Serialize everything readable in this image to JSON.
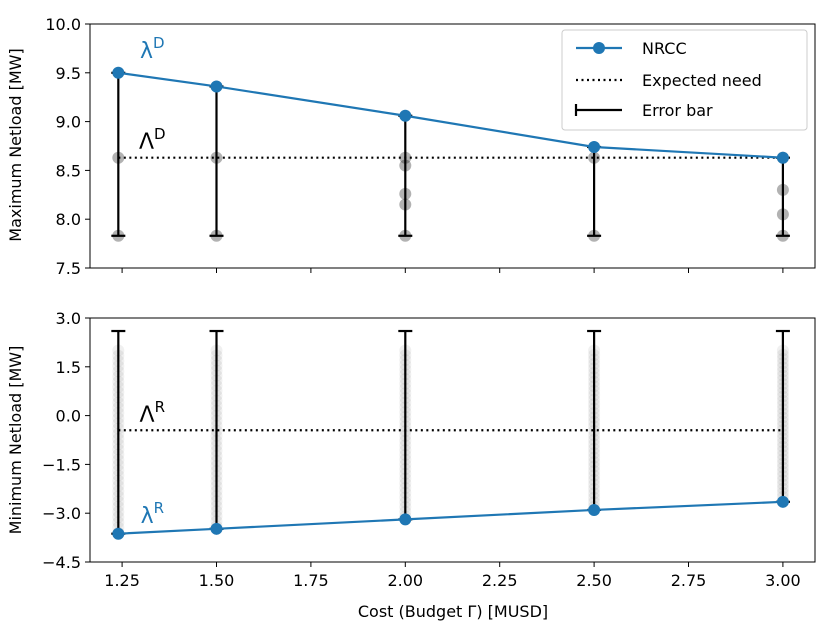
{
  "chart_data": [
    {
      "type": "line",
      "panel": "top",
      "ylabel": "Maximum Netload [MW]",
      "ylim": [
        7.5,
        10.0
      ],
      "yticks": [
        7.5,
        8.0,
        8.5,
        9.0,
        9.5,
        10.0
      ],
      "ytick_labels": [
        "7.5",
        "8.0",
        "8.5",
        "9.0",
        "9.5",
        "10.0"
      ],
      "xlim": [
        1.165,
        3.085
      ],
      "xticks": [
        1.25,
        1.5,
        1.75,
        2.0,
        2.25,
        2.5,
        2.75,
        3.0
      ],
      "x": [
        1.24,
        1.5,
        2.0,
        2.5,
        3.0
      ],
      "series": [
        {
          "name": "NRCC",
          "kind": "line-marker",
          "color": "#1f77b4",
          "values": [
            9.5,
            9.36,
            9.06,
            8.74,
            8.63
          ]
        },
        {
          "name": "Expected need",
          "kind": "dotted",
          "color": "#000000",
          "values": [
            8.63,
            8.63,
            8.63,
            8.63,
            8.63
          ]
        }
      ],
      "error_bars": {
        "name": "Error bar",
        "lower": [
          7.83,
          7.83,
          7.83,
          7.83,
          7.83
        ],
        "upper": [
          9.5,
          9.36,
          9.06,
          8.74,
          8.63
        ]
      },
      "samples": [
        {
          "x": 1.24,
          "y": [
            7.83,
            8.63
          ]
        },
        {
          "x": 1.5,
          "y": [
            7.83,
            8.63
          ]
        },
        {
          "x": 2.0,
          "y": [
            7.83,
            8.15,
            8.26,
            8.55,
            8.63
          ]
        },
        {
          "x": 2.5,
          "y": [
            7.83,
            8.63
          ]
        },
        {
          "x": 3.0,
          "y": [
            7.83,
            8.05,
            8.3,
            8.63
          ]
        }
      ],
      "annotations": [
        {
          "text": "λ",
          "sup": "D",
          "x": 1.33,
          "y": 9.65,
          "color": "#1f77b4"
        },
        {
          "text": "Λ",
          "sup": "D",
          "x": 1.33,
          "y": 8.72,
          "color": "#000000"
        }
      ],
      "legend": {
        "placement": "top-right",
        "entries": [
          "NRCC",
          "Expected need",
          "Error bar"
        ]
      }
    },
    {
      "type": "line",
      "panel": "bottom",
      "ylabel": "Minimum Netload [MW]",
      "xlabel": "Cost (Budget Γ) [MUSD]",
      "ylim": [
        -4.5,
        3.0
      ],
      "yticks": [
        -4.5,
        -3.0,
        -1.5,
        0.0,
        1.5,
        3.0
      ],
      "ytick_labels": [
        "−4.5",
        "−3.0",
        "−1.5",
        "0.0",
        "1.5",
        "3.0"
      ],
      "xlim": [
        1.165,
        3.085
      ],
      "xticks": [
        1.25,
        1.5,
        1.75,
        2.0,
        2.25,
        2.5,
        2.75,
        3.0
      ],
      "xtick_labels": [
        "1.25",
        "1.50",
        "1.75",
        "2.00",
        "2.25",
        "2.50",
        "2.75",
        "3.00"
      ],
      "x": [
        1.24,
        1.5,
        2.0,
        2.5,
        3.0
      ],
      "series": [
        {
          "name": "NRCC",
          "kind": "line-marker",
          "color": "#1f77b4",
          "values": [
            -3.63,
            -3.48,
            -3.19,
            -2.9,
            -2.65
          ]
        },
        {
          "name": "Expected need",
          "kind": "dotted",
          "color": "#000000",
          "values": [
            -0.45,
            -0.45,
            -0.45,
            -0.45,
            -0.45
          ]
        }
      ],
      "error_bars": {
        "name": "Error bar",
        "lower": [
          -3.63,
          -3.48,
          -3.19,
          -2.9,
          -2.65
        ],
        "upper": [
          2.6,
          2.6,
          2.6,
          2.6,
          2.6
        ]
      },
      "sample_clouds": [
        {
          "x": 1.24,
          "y_min": -3.6,
          "y_max": 2.0
        },
        {
          "x": 1.5,
          "y_min": -3.4,
          "y_max": 2.0
        },
        {
          "x": 2.0,
          "y_min": -3.1,
          "y_max": 2.0
        },
        {
          "x": 2.5,
          "y_min": -2.8,
          "y_max": 2.0
        },
        {
          "x": 3.0,
          "y_min": -2.5,
          "y_max": 2.0
        }
      ],
      "annotations": [
        {
          "text": "Λ",
          "sup": "R",
          "x": 1.33,
          "y": -0.2,
          "color": "#000000"
        },
        {
          "text": "λ",
          "sup": "R",
          "x": 1.33,
          "y": -3.3,
          "color": "#1f77b4"
        }
      ]
    }
  ]
}
